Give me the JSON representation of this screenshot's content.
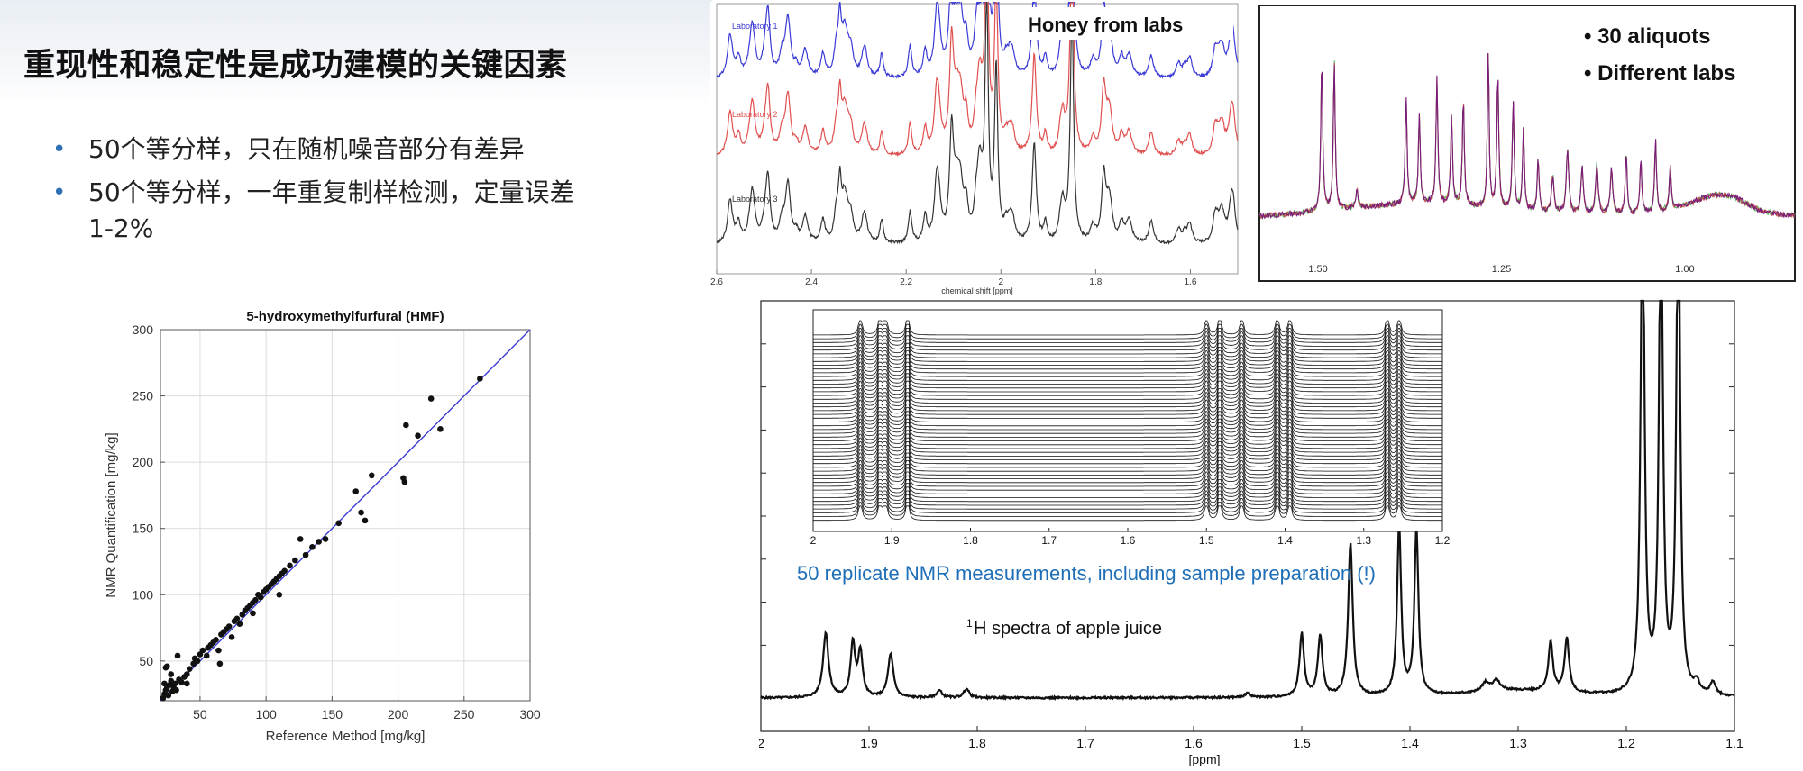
{
  "slide": {
    "title": "重现性和稳定性是成功建模的关键因素",
    "bullets": [
      "50个等分样，只在随机噪音部分有差异",
      "50个等分样，一年重复制样检测，定量误差1-2%"
    ]
  },
  "chart_data": [
    {
      "type": "scatter",
      "title": "5-hydroxymethylfurfural (HMF)",
      "xlabel": "Reference Method [mg/kg]",
      "ylabel": "NMR Quantification [mg/kg]",
      "xlim": [
        20,
        300
      ],
      "ylim": [
        20,
        300
      ],
      "xticks": [
        50,
        100,
        150,
        200,
        250,
        300
      ],
      "yticks": [
        50,
        100,
        150,
        200,
        250,
        300
      ],
      "grid": true,
      "reference_line": [
        [
          20,
          20
        ],
        [
          300,
          300
        ]
      ],
      "points": [
        [
          22,
          22
        ],
        [
          23,
          25
        ],
        [
          24,
          28
        ],
        [
          25,
          30
        ],
        [
          26,
          24
        ],
        [
          23,
          33
        ],
        [
          24,
          45
        ],
        [
          25,
          46
        ],
        [
          27,
          32
        ],
        [
          28,
          35
        ],
        [
          29,
          27
        ],
        [
          30,
          30
        ],
        [
          31,
          33
        ],
        [
          32,
          28
        ],
        [
          34,
          36
        ],
        [
          36,
          34
        ],
        [
          38,
          38
        ],
        [
          40,
          40
        ],
        [
          42,
          44
        ],
        [
          45,
          48
        ],
        [
          46,
          52
        ],
        [
          48,
          50
        ],
        [
          50,
          55
        ],
        [
          52,
          58
        ],
        [
          55,
          54
        ],
        [
          56,
          60
        ],
        [
          58,
          62
        ],
        [
          60,
          64
        ],
        [
          62,
          66
        ],
        [
          64,
          58
        ],
        [
          66,
          70
        ],
        [
          68,
          72
        ],
        [
          70,
          74
        ],
        [
          72,
          76
        ],
        [
          74,
          68
        ],
        [
          76,
          80
        ],
        [
          78,
          82
        ],
        [
          80,
          78
        ],
        [
          82,
          85
        ],
        [
          84,
          88
        ],
        [
          86,
          90
        ],
        [
          88,
          92
        ],
        [
          90,
          94
        ],
        [
          92,
          96
        ],
        [
          94,
          100
        ],
        [
          96,
          98
        ],
        [
          98,
          102
        ],
        [
          100,
          104
        ],
        [
          102,
          106
        ],
        [
          104,
          108
        ],
        [
          106,
          110
        ],
        [
          108,
          112
        ],
        [
          110,
          114
        ],
        [
          112,
          116
        ],
        [
          114,
          118
        ],
        [
          118,
          122
        ],
        [
          122,
          126
        ],
        [
          126,
          142
        ],
        [
          130,
          130
        ],
        [
          135,
          136
        ],
        [
          140,
          140
        ],
        [
          145,
          142
        ],
        [
          155,
          154
        ],
        [
          168,
          178
        ],
        [
          172,
          162
        ],
        [
          175,
          156
        ],
        [
          180,
          190
        ],
        [
          204,
          188
        ],
        [
          205,
          185
        ],
        [
          206,
          228
        ],
        [
          215,
          220
        ],
        [
          225,
          248
        ],
        [
          232,
          225
        ],
        [
          262,
          263
        ],
        [
          33,
          54
        ],
        [
          40,
          33
        ],
        [
          28,
          40
        ],
        [
          65,
          48
        ],
        [
          90,
          86
        ],
        [
          110,
          100
        ]
      ]
    },
    {
      "type": "line",
      "title": "Honey from labs",
      "xlabel": "chemical shift [ppm]",
      "xlim": [
        2.6,
        1.5
      ],
      "xticks": [
        2.6,
        2.4,
        2.2,
        2,
        1.8,
        1.6
      ],
      "series": [
        {
          "name": "Laboratory 1",
          "color": "#3a3ad6"
        },
        {
          "name": "Laboratory 2",
          "color": "#e0504f"
        },
        {
          "name": "Laboratory 3",
          "color": "#333333"
        }
      ]
    },
    {
      "type": "line",
      "annotations": [
        "30 aliquots",
        "Different labs"
      ],
      "xlim": [
        1.58,
        0.85
      ],
      "xticks": [
        "1.50",
        "1.25",
        "1.00"
      ]
    },
    {
      "type": "line",
      "annotations": [
        "50 replicate NMR measurements, including sample preparation (!)",
        "spectra of apple juice"
      ],
      "annotation_superscript": "1",
      "annotation_prefix": "H",
      "xlabel": "[ppm]",
      "xlim": [
        2,
        1.1
      ],
      "xticks": [
        "2",
        "1.9",
        "1.8",
        "1.7",
        "1.6",
        "1.5",
        "1.4",
        "1.3",
        "1.2",
        "1.1"
      ],
      "inset": {
        "xlim": [
          2,
          1.2
        ],
        "xticks": [
          "2",
          "1.9",
          "1.8",
          "1.7",
          "1.6",
          "1.5",
          "1.4",
          "1.3",
          "1.2"
        ],
        "replicates": 50
      }
    }
  ],
  "colors": {
    "bullet": "#2f6fb3",
    "annotation_blue": "#1f6fb8",
    "scatter_line": "#3b3bd0"
  }
}
